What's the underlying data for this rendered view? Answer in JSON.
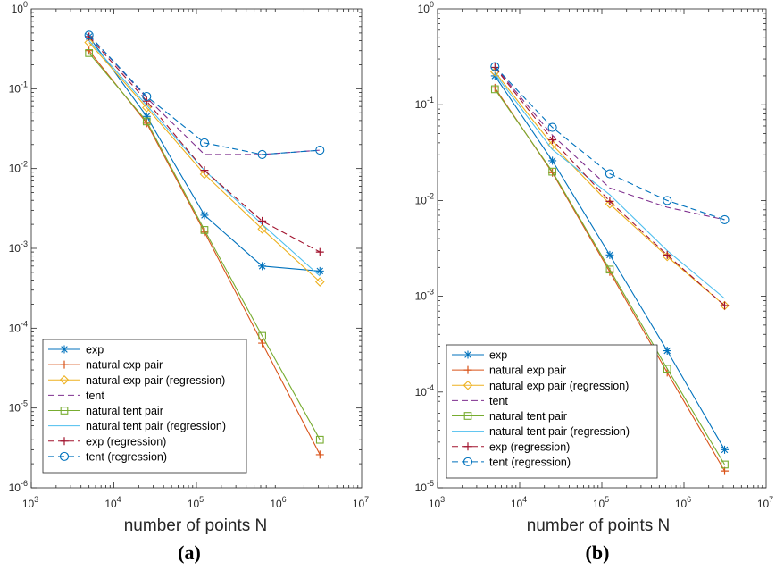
{
  "figure": {
    "panel_labels": [
      "(a)",
      "(b)"
    ]
  },
  "chart_data": [
    {
      "type": "line",
      "xlabel": "number of points N",
      "ylabel": "",
      "xscale": "log",
      "yscale": "log",
      "xlim": [
        1000,
        10000000
      ],
      "ylim": [
        1e-06,
        1
      ],
      "xticks": [
        1000,
        10000,
        100000,
        1000000,
        10000000
      ],
      "xtick_labels": [
        [
          "10",
          "3"
        ],
        [
          "10",
          "4"
        ],
        [
          "10",
          "5"
        ],
        [
          "10",
          "6"
        ],
        [
          "10",
          "7"
        ]
      ],
      "yticks": [
        1e-06,
        1e-05,
        0.0001,
        0.001,
        0.01,
        0.1,
        1
      ],
      "ytick_labels": [
        [
          "10",
          "-6"
        ],
        [
          "10",
          "-5"
        ],
        [
          "10",
          "-4"
        ],
        [
          "10",
          "-3"
        ],
        [
          "10",
          "-2"
        ],
        [
          "10",
          "-1"
        ],
        [
          "10",
          "0"
        ]
      ],
      "legend_position": "bottom-left",
      "x": [
        5000,
        25000,
        125000,
        625000,
        3125000
      ],
      "series": [
        {
          "name": "exp",
          "color": "#0072BD",
          "dash": "solid",
          "marker": "asterisk",
          "values": [
            0.45,
            0.045,
            0.0026,
            0.0006,
            0.00052
          ]
        },
        {
          "name": "natural exp pair",
          "color": "#D95319",
          "dash": "solid",
          "marker": "plus",
          "values": [
            0.3,
            0.037,
            0.0016,
            6.5e-05,
            2.6e-06
          ]
        },
        {
          "name": "natural exp pair (regression)",
          "color": "#EDB120",
          "dash": "solid",
          "marker": "diamond",
          "values": [
            0.38,
            0.058,
            0.0085,
            0.00175,
            0.00038
          ]
        },
        {
          "name": "tent",
          "color": "#7E2F8E",
          "dash": "dashed",
          "marker": "none",
          "values": [
            0.47,
            0.077,
            0.015,
            0.015,
            0.017
          ]
        },
        {
          "name": "natural tent pair",
          "color": "#77AC30",
          "dash": "solid",
          "marker": "square",
          "values": [
            0.28,
            0.039,
            0.0017,
            8e-05,
            4e-06
          ]
        },
        {
          "name": "natural tent pair (regression)",
          "color": "#4DBEEE",
          "dash": "solid",
          "marker": "none",
          "values": [
            0.4,
            0.062,
            0.0095,
            0.002,
            0.00045
          ]
        },
        {
          "name": "exp (regression)",
          "color": "#A2142F",
          "dash": "dashed",
          "marker": "plus",
          "values": [
            0.45,
            0.07,
            0.0095,
            0.0022,
            0.0009
          ]
        },
        {
          "name": "tent (regression)",
          "color": "#0072BD",
          "dash": "dashed",
          "marker": "circle",
          "values": [
            0.47,
            0.08,
            0.021,
            0.015,
            0.017
          ]
        }
      ]
    },
    {
      "type": "line",
      "xlabel": "number of points N",
      "ylabel": "",
      "xscale": "log",
      "yscale": "log",
      "xlim": [
        1000,
        10000000
      ],
      "ylim": [
        1e-05,
        1
      ],
      "xticks": [
        1000,
        10000,
        100000,
        1000000,
        10000000
      ],
      "xtick_labels": [
        [
          "10",
          "3"
        ],
        [
          "10",
          "4"
        ],
        [
          "10",
          "5"
        ],
        [
          "10",
          "6"
        ],
        [
          "10",
          "7"
        ]
      ],
      "yticks": [
        1e-05,
        0.0001,
        0.001,
        0.01,
        0.1,
        1
      ],
      "ytick_labels": [
        [
          "10",
          "-5"
        ],
        [
          "10",
          "-4"
        ],
        [
          "10",
          "-3"
        ],
        [
          "10",
          "-2"
        ],
        [
          "10",
          "-1"
        ],
        [
          "10",
          "0"
        ]
      ],
      "legend_position": "bottom-left",
      "x": [
        5000,
        25000,
        125000,
        625000,
        3125000
      ],
      "series": [
        {
          "name": "exp",
          "color": "#0072BD",
          "dash": "solid",
          "marker": "asterisk",
          "values": [
            0.2,
            0.026,
            0.0027,
            0.00027,
            2.5e-05
          ]
        },
        {
          "name": "natural exp pair",
          "color": "#D95319",
          "dash": "solid",
          "marker": "plus",
          "values": [
            0.15,
            0.0195,
            0.0018,
            0.00016,
            1.5e-05
          ]
        },
        {
          "name": "natural exp pair (regression)",
          "color": "#EDB120",
          "dash": "solid",
          "marker": "diamond",
          "values": [
            0.22,
            0.038,
            0.0092,
            0.0026,
            0.0008
          ]
        },
        {
          "name": "tent",
          "color": "#7E2F8E",
          "dash": "dashed",
          "marker": "none",
          "values": [
            0.25,
            0.048,
            0.0135,
            0.0085,
            0.0063
          ]
        },
        {
          "name": "natural tent pair",
          "color": "#77AC30",
          "dash": "solid",
          "marker": "square",
          "values": [
            0.145,
            0.02,
            0.0019,
            0.000175,
            1.75e-05
          ]
        },
        {
          "name": "natural tent pair (regression)",
          "color": "#4DBEEE",
          "dash": "solid",
          "marker": "none",
          "values": [
            0.21,
            0.034,
            0.0115,
            0.003,
            0.00095
          ]
        },
        {
          "name": "exp (regression)",
          "color": "#A2142F",
          "dash": "dashed",
          "marker": "plus",
          "values": [
            0.245,
            0.043,
            0.0098,
            0.0027,
            0.0008
          ]
        },
        {
          "name": "tent (regression)",
          "color": "#0072BD",
          "dash": "dashed",
          "marker": "circle",
          "values": [
            0.25,
            0.058,
            0.019,
            0.01,
            0.0063
          ]
        }
      ]
    }
  ]
}
